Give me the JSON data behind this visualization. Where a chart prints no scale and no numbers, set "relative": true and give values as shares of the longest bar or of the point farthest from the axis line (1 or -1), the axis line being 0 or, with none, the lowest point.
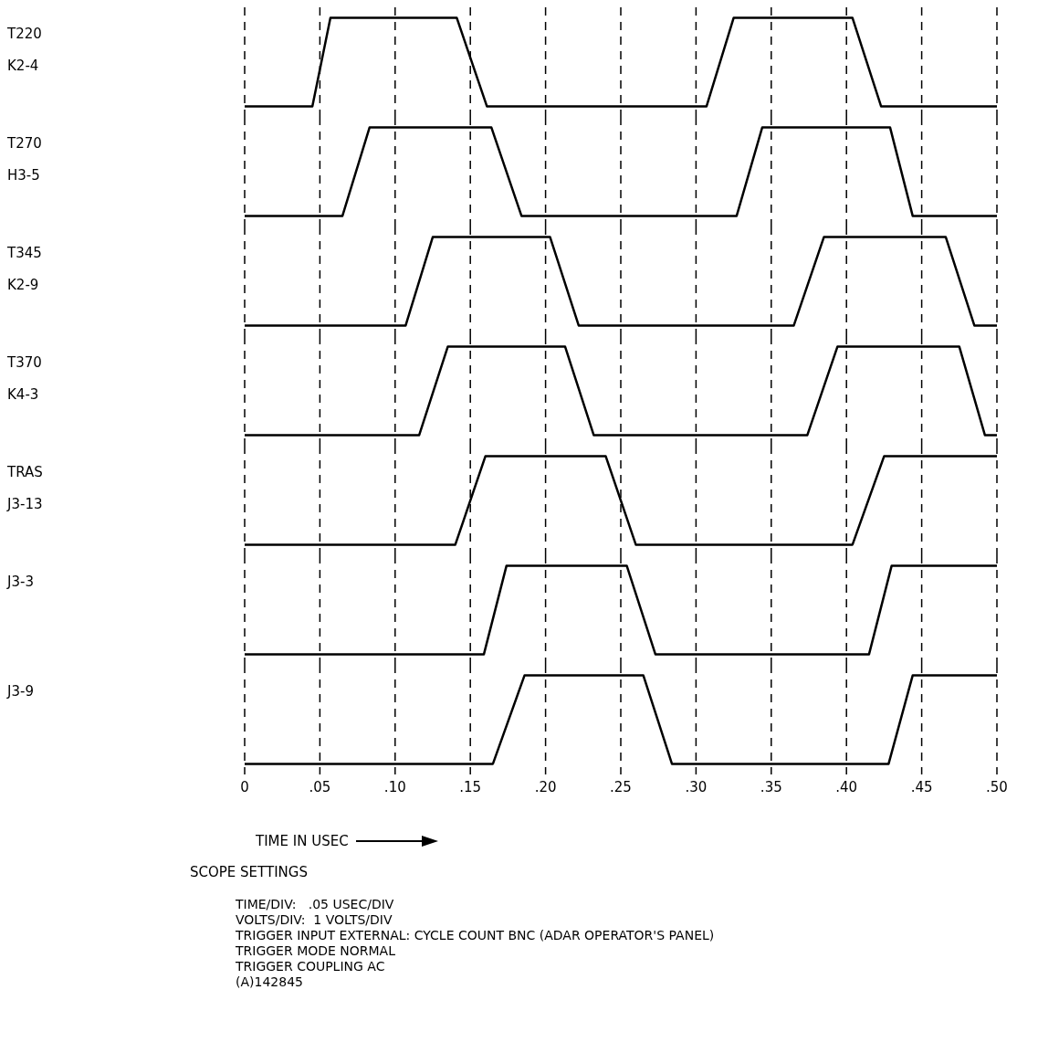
{
  "chart_data": [
    {
      "type": "line",
      "relative": true,
      "grid": "x",
      "tick_labels": false,
      "marker": "none",
      "line_style": "solid",
      "annotations": [
        "T220",
        "K2-4"
      ],
      "xlim": [
        0,
        0.5
      ],
      "xticks": [
        {
          "value": 0,
          "label": null
        },
        {
          "value": 0.05,
          "label": null
        },
        {
          "value": 0.1,
          "label": null
        },
        {
          "value": 0.15,
          "label": null
        },
        {
          "value": 0.2,
          "label": null
        },
        {
          "value": 0.25,
          "label": null
        },
        {
          "value": 0.3,
          "label": null
        },
        {
          "value": 0.35,
          "label": null
        },
        {
          "value": 0.4,
          "label": null
        },
        {
          "value": 0.45,
          "label": null
        },
        {
          "value": 0.5,
          "label": null
        }
      ],
      "series": [
        {
          "color": "#000000",
          "x": [
            0,
            0.045,
            0.057,
            0.141,
            0.161,
            0.307,
            0.325,
            0.404,
            0.423,
            0.5
          ],
          "values": [
            0,
            0,
            1,
            1,
            0,
            0,
            1,
            1,
            0,
            0
          ]
        }
      ]
    },
    {
      "type": "line",
      "relative": true,
      "grid": "x",
      "tick_labels": false,
      "marker": "none",
      "line_style": "solid",
      "annotations": [
        "T270",
        "H3-5"
      ],
      "xlim": [
        0,
        0.5
      ],
      "xticks": [
        {
          "value": 0,
          "label": null
        },
        {
          "value": 0.05,
          "label": null
        },
        {
          "value": 0.1,
          "label": null
        },
        {
          "value": 0.15,
          "label": null
        },
        {
          "value": 0.2,
          "label": null
        },
        {
          "value": 0.25,
          "label": null
        },
        {
          "value": 0.3,
          "label": null
        },
        {
          "value": 0.35,
          "label": null
        },
        {
          "value": 0.4,
          "label": null
        },
        {
          "value": 0.45,
          "label": null
        },
        {
          "value": 0.5,
          "label": null
        }
      ],
      "series": [
        {
          "color": "#000000",
          "x": [
            0,
            0.065,
            0.083,
            0.164,
            0.184,
            0.327,
            0.344,
            0.429,
            0.444,
            0.5
          ],
          "values": [
            0,
            0,
            1,
            1,
            0,
            0,
            1,
            1,
            0,
            0
          ]
        }
      ]
    },
    {
      "type": "line",
      "relative": true,
      "grid": "x",
      "tick_labels": false,
      "marker": "none",
      "line_style": "solid",
      "annotations": [
        "T345",
        "K2-9"
      ],
      "xlim": [
        0,
        0.5
      ],
      "xticks": [
        {
          "value": 0,
          "label": null
        },
        {
          "value": 0.05,
          "label": null
        },
        {
          "value": 0.1,
          "label": null
        },
        {
          "value": 0.15,
          "label": null
        },
        {
          "value": 0.2,
          "label": null
        },
        {
          "value": 0.25,
          "label": null
        },
        {
          "value": 0.3,
          "label": null
        },
        {
          "value": 0.35,
          "label": null
        },
        {
          "value": 0.4,
          "label": null
        },
        {
          "value": 0.45,
          "label": null
        },
        {
          "value": 0.5,
          "label": null
        }
      ],
      "series": [
        {
          "color": "#000000",
          "x": [
            0,
            0.107,
            0.125,
            0.203,
            0.222,
            0.365,
            0.385,
            0.466,
            0.485,
            0.5
          ],
          "values": [
            0,
            0,
            1,
            1,
            0,
            0,
            1,
            1,
            0,
            0
          ]
        }
      ]
    },
    {
      "type": "line",
      "relative": true,
      "grid": "x",
      "tick_labels": false,
      "marker": "none",
      "line_style": "solid",
      "annotations": [
        "T370",
        "K4-3"
      ],
      "xlim": [
        0,
        0.5
      ],
      "xticks": [
        {
          "value": 0,
          "label": null
        },
        {
          "value": 0.05,
          "label": null
        },
        {
          "value": 0.1,
          "label": null
        },
        {
          "value": 0.15,
          "label": null
        },
        {
          "value": 0.2,
          "label": null
        },
        {
          "value": 0.25,
          "label": null
        },
        {
          "value": 0.3,
          "label": null
        },
        {
          "value": 0.35,
          "label": null
        },
        {
          "value": 0.4,
          "label": null
        },
        {
          "value": 0.45,
          "label": null
        },
        {
          "value": 0.5,
          "label": null
        }
      ],
      "series": [
        {
          "color": "#000000",
          "x": [
            0,
            0.116,
            0.135,
            0.213,
            0.232,
            0.374,
            0.394,
            0.475,
            0.492,
            0.5
          ],
          "values": [
            0,
            0,
            1,
            1,
            0,
            0,
            1,
            1,
            0,
            0
          ]
        }
      ]
    },
    {
      "type": "line",
      "relative": true,
      "grid": "x",
      "tick_labels": false,
      "marker": "none",
      "line_style": "solid",
      "annotations": [
        "TRAS",
        "J3-13"
      ],
      "xlim": [
        0,
        0.5
      ],
      "xticks": [
        {
          "value": 0,
          "label": null
        },
        {
          "value": 0.05,
          "label": null
        },
        {
          "value": 0.1,
          "label": null
        },
        {
          "value": 0.15,
          "label": null
        },
        {
          "value": 0.2,
          "label": null
        },
        {
          "value": 0.25,
          "label": null
        },
        {
          "value": 0.3,
          "label": null
        },
        {
          "value": 0.35,
          "label": null
        },
        {
          "value": 0.4,
          "label": null
        },
        {
          "value": 0.45,
          "label": null
        },
        {
          "value": 0.5,
          "label": null
        }
      ],
      "series": [
        {
          "color": "#000000",
          "x": [
            0,
            0.14,
            0.16,
            0.24,
            0.26,
            0.404,
            0.425,
            0.5
          ],
          "values": [
            0,
            0,
            1,
            1,
            0,
            0,
            1,
            1
          ]
        }
      ]
    },
    {
      "type": "line",
      "relative": true,
      "grid": "x",
      "tick_labels": false,
      "marker": "none",
      "line_style": "solid",
      "annotations": [
        "J3-3"
      ],
      "xlim": [
        0,
        0.5
      ],
      "xticks": [
        {
          "value": 0,
          "label": null
        },
        {
          "value": 0.05,
          "label": null
        },
        {
          "value": 0.1,
          "label": null
        },
        {
          "value": 0.15,
          "label": null
        },
        {
          "value": 0.2,
          "label": null
        },
        {
          "value": 0.25,
          "label": null
        },
        {
          "value": 0.3,
          "label": null
        },
        {
          "value": 0.35,
          "label": null
        },
        {
          "value": 0.4,
          "label": null
        },
        {
          "value": 0.45,
          "label": null
        },
        {
          "value": 0.5,
          "label": null
        }
      ],
      "series": [
        {
          "color": "#000000",
          "x": [
            0,
            0.159,
            0.174,
            0.254,
            0.273,
            0.415,
            0.43,
            0.5
          ],
          "values": [
            0,
            0,
            1,
            1,
            0,
            0,
            1,
            1
          ]
        }
      ]
    },
    {
      "type": "line",
      "relative": true,
      "grid": "x",
      "tick_labels": "x",
      "marker": "none",
      "line_style": "solid",
      "annotations": [
        "J3-9"
      ],
      "xlabel": "TIME IN USEC",
      "xlim": [
        0,
        0.5
      ],
      "xticks": [
        0,
        {
          "value": 0.05,
          "label": ".05"
        },
        {
          "value": 0.1,
          "label": ".10"
        },
        {
          "value": 0.15,
          "label": ".15"
        },
        {
          "value": 0.2,
          "label": ".20"
        },
        {
          "value": 0.25,
          "label": ".25"
        },
        {
          "value": 0.3,
          "label": ".30"
        },
        {
          "value": 0.35,
          "label": ".35"
        },
        {
          "value": 0.4,
          "label": ".40"
        },
        {
          "value": 0.45,
          "label": ".45"
        },
        {
          "value": 0.5,
          "label": ".50"
        }
      ],
      "series": [
        {
          "color": "#000000",
          "x": [
            0,
            0.165,
            0.186,
            0.265,
            0.284,
            0.428,
            0.444,
            0.5
          ],
          "values": [
            0,
            0,
            1,
            1,
            0,
            0,
            1,
            1
          ]
        }
      ]
    },
    {
      "type": "other",
      "title": "SCOPE SETTINGS",
      "annotations": [
        "TIME/DIV:   .05 USEC/DIV",
        "VOLTS/DIV:  1 VOLTS/DIV",
        "TRIGGER INPUT EXTERNAL: CYCLE COUNT BNC (ADAR OPERATOR'S PANEL)",
        "TRIGGER MODE NORMAL",
        "TRIGGER COUPLING AC",
        "(A)142845"
      ]
    }
  ]
}
